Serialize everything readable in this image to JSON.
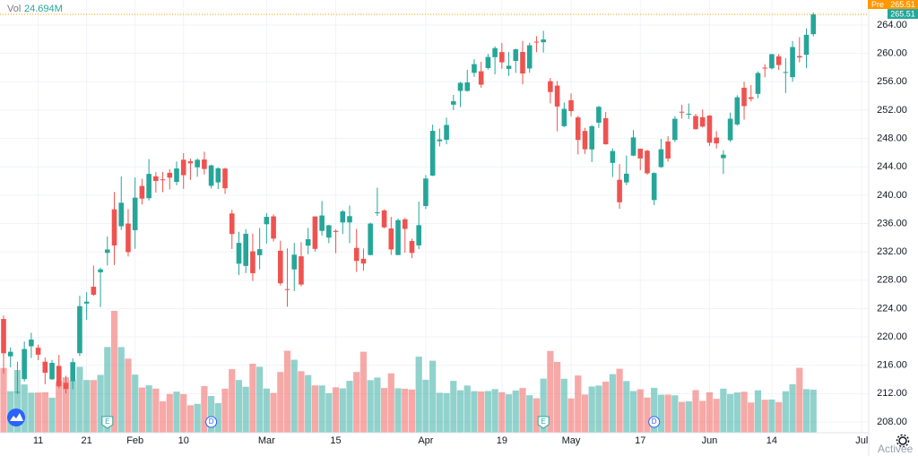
{
  "chart_data": {
    "type": "candlestick",
    "categories": [
      null,
      null,
      null,
      null,
      null,
      "11",
      null,
      null,
      null,
      null,
      null,
      null,
      "21",
      null,
      null,
      null,
      null,
      null,
      null,
      "Feb",
      null,
      null,
      null,
      null,
      null,
      null,
      "10",
      null,
      null,
      null,
      null,
      null,
      null,
      null,
      null,
      null,
      null,
      null,
      "Mar",
      null,
      null,
      null,
      null,
      null,
      null,
      null,
      null,
      null,
      "15",
      null,
      null,
      null,
      null,
      null,
      null,
      null,
      null,
      null,
      null,
      null,
      null,
      "Apr",
      null,
      null,
      null,
      null,
      null,
      null,
      null,
      null,
      null,
      null,
      "19",
      null,
      null,
      null,
      null,
      null,
      null,
      null,
      null,
      null,
      "May",
      null,
      null,
      null,
      null,
      null,
      null,
      null,
      null,
      null,
      "17",
      null,
      null,
      null,
      null,
      null,
      null,
      null,
      null,
      null,
      "Jun",
      null,
      null,
      null,
      null,
      null,
      null,
      null,
      null,
      "14",
      null,
      null,
      null,
      null,
      null,
      null,
      null,
      null,
      null,
      null,
      null,
      null,
      "Jul"
    ],
    "open": [
      222.53,
      217.26,
      212.17,
      214.04,
      218.68,
      218.47,
      216.5,
      214.02,
      215.91,
      213.52,
      213.75,
      217.7,
      224.7,
      227.08,
      229.12,
      231.86,
      238,
      235.61,
      235.99,
      235.06,
      241.3,
      239.57,
      242.66,
      242.23,
      243.15,
      241.87,
      245,
      244.78,
      243.93,
      245.03,
      241.32,
      241.8,
      243.75,
      237.42,
      230.33,
      230.01,
      232.08,
      231.53,
      235.9,
      237.01,
      232.16,
      226.74,
      229.52,
      231.37,
      232.88,
      237,
      234.96,
      234.01,
      234.96,
      236.15,
      236.15,
      232.56,
      231.02,
      231.55,
      237.49,
      237.85,
      235.3,
      231.55,
      236.59,
      233.53,
      232.91,
      238.47,
      242.76,
      247.61,
      247.81,
      252.77,
      254.71,
      254.71,
      257.26,
      257.48,
      257.93,
      259.47,
      260.19,
      257.82,
      258.94,
      260.21,
      257.88,
      261.66,
      261.58,
      256.08,
      255.46,
      249.74,
      253.4,
      250.97,
      249.06,
      246.45,
      250.23,
      250.87,
      244.55,
      242.17,
      241.8,
      245.58,
      246.55,
      246.27,
      239.31,
      243.96,
      247.57,
      247.79,
      251.77,
      251.43,
      251.17,
      251,
      251.23,
      248.13,
      245.22,
      247.76,
      249.98,
      255.16,
      253.81,
      254.29,
      257.99,
      257.9,
      259.58,
      257.32,
      256.65,
      259.63,
      259.82,
      262.72,
      null,
      null,
      null,
      null,
      null,
      null,
      null
    ],
    "high": [
      223,
      218.52,
      216.49,
      219.34,
      220.58,
      218.91,
      217.1,
      216.76,
      217.46,
      214.51,
      216.98,
      225.79,
      226.3,
      230.07,
      229.78,
      234.18,
      240.44,
      242.64,
      238.02,
      242.5,
      242.31,
      245.09,
      243.24,
      243.28,
      243.68,
      244.76,
      245.92,
      245.15,
      245.2,
      246.13,
      244.31,
      243.93,
      243.86,
      237.93,
      234.83,
      235.2,
      234.59,
      235.37,
      237.47,
      237.3,
      233.58,
      232.49,
      233.27,
      233.37,
      235.38,
      237,
      239.17,
      235.82,
      235.19,
      237.9,
      238.55,
      235.23,
      232.47,
      236.13,
      241.05,
      238,
      236.94,
      236.71,
      236.8,
      233.85,
      239.1,
      242.84,
      249.96,
      249.4,
      250.93,
      254.14,
      255.99,
      257.67,
      259.19,
      258.83,
      259.93,
      261,
      261.48,
      260.2,
      260.68,
      261.78,
      261.51,
      262.44,
      263.19,
      256.54,
      256.1,
      253.08,
      254.35,
      251.21,
      249.5,
      249.9,
      252.6,
      251.73,
      246.6,
      244.38,
      245.6,
      249.18,
      246.59,
      246.41,
      243.23,
      247.95,
      248.33,
      251.16,
      252.75,
      252.94,
      251.48,
      252.08,
      251.29,
      249.03,
      246.34,
      251.65,
      254.09,
      256.01,
      255.53,
      257.46,
      258.49,
      259.95,
      259.9,
      259.34,
      261.75,
      262.3,
      263.52,
      265.79,
      null,
      null,
      null,
      null,
      null,
      null,
      null
    ],
    "low": [
      214.81,
      215.7,
      211.94,
      213.71,
      217.03,
      216.73,
      213.32,
      213.93,
      212.74,
      212.03,
      212.63,
      217.29,
      222.42,
      225.8,
      224.22,
      230.08,
      230.14,
      235.09,
      231.35,
      232.43,
      238.69,
      239.26,
      240.37,
      240.42,
      240.81,
      241.38,
      240.89,
      242.15,
      242.6,
      242.92,
      240.94,
      240.86,
      240.18,
      232.4,
      228.73,
      229,
      227.88,
      229.54,
      233.15,
      233.45,
      227.26,
      224.26,
      226.46,
      227.13,
      231.67,
      232.04,
      234.31,
      233.23,
      231.81,
      234.53,
      233.23,
      229.16,
      229.35,
      231.5,
      237.07,
      235.32,
      231.57,
      231.55,
      231.88,
      231.1,
      232.39,
      238.05,
      242.7,
      246.88,
      247.19,
      252,
      252.44,
      254.62,
      256.7,
      255.16,
      257.73,
      257.06,
      257.83,
      256.84,
      257.25,
      255.64,
      257.27,
      260.17,
      260.12,
      252.95,
      249,
      249.6,
      251.12,
      245.76,
      245.82,
      244.68,
      249.49,
      247.12,
      242.57,
      238.07,
      241.42,
      245.49,
      243.52,
      242.9,
      238.6,
      243.86,
      244.74,
      247.51,
      250.82,
      250.75,
      249.25,
      249.56,
      246.96,
      246.59,
      243,
      247.51,
      249.81,
      250.65,
      253.21,
      253.67,
      256.61,
      257.73,
      257.67,
      254.42,
      256.01,
      258.75,
      257.92,
      262.4,
      null,
      null,
      null,
      null,
      null,
      null,
      null
    ],
    "close": [
      217.69,
      217.9,
      212.25,
      218.29,
      219.62,
      217.49,
      214.93,
      216.34,
      213.02,
      212.65,
      216.44,
      224.34,
      224.97,
      225.95,
      229.53,
      232.33,
      232.9,
      238.93,
      231.96,
      239.65,
      239.51,
      243,
      242.01,
      242.2,
      242.47,
      243.77,
      242.82,
      244.49,
      244.99,
      243.7,
      244.2,
      243.79,
      240.97,
      234.51,
      233.27,
      234.55,
      228.99,
      232.38,
      236.94,
      233.87,
      227.56,
      226.73,
      231.6,
      227.39,
      233.78,
      232.42,
      237.13,
      235.75,
      234.81,
      237.71,
      237.04,
      230.72,
      230.35,
      235.99,
      237.58,
      235.46,
      232.34,
      236.48,
      235.24,
      231.85,
      235.77,
      242.35,
      249.07,
      247.86,
      249.9,
      253.25,
      255.85,
      255.91,
      258.49,
      255.59,
      259.5,
      260.74,
      258.74,
      258.26,
      260.58,
      257.17,
      261.15,
      261.55,
      261.97,
      254.56,
      252.51,
      252.18,
      251.86,
      247.79,
      246.47,
      249.73,
      252.46,
      247.18,
      246.23,
      239,
      243.03,
      248.15,
      245.18,
      243.08,
      243.12,
      246.48,
      245.17,
      250.78,
      251.72,
      251.49,
      249.31,
      249.68,
      247.4,
      247.3,
      245.71,
      250.79,
      253.81,
      252.57,
      253.59,
      257.24,
      257.89,
      259.89,
      258.36,
      257.38,
      260.9,
      259.43,
      262.63,
      265.51,
      null,
      null,
      null,
      null,
      null,
      null,
      null
    ],
    "volume": {
      "name": "Vol",
      "value_label": "24.694M",
      "values": [
        37.13,
        23.82,
        35.93,
        27.69,
        22.96,
        23.03,
        23.21,
        20.09,
        29.48,
        31.75,
        30,
        37.78,
        30.22,
        30.17,
        33.15,
        49.17,
        69.87,
        49.11,
        42.5,
        33.31,
        25.92,
        27.16,
        25.3,
        18.05,
        22.21,
        23.57,
        22.12,
        15.75,
        16.56,
        26.73,
        21.05,
        16.93,
        25.26,
        36.45,
        30.23,
        26.34,
        39.54,
        37.82,
        25.32,
        22.81,
        34.83,
        47.03,
        41.87,
        35.27,
        33.08,
        27.15,
        27.1,
        22.65,
        26.04,
        25.43,
        29.75,
        34.83,
        46.43,
        30.13,
        31.64,
        25.62,
        34.06,
        25.48,
        25.23,
        24.79,
        43.62,
        30.34,
        41.29,
        22.9,
        22.72,
        29.75,
        24.33,
        27.06,
        23.84,
        23.68,
        23.9,
        25,
        23.22,
        22.04,
        24.2,
        25.62,
        21.51,
        19.72,
        31.01,
        46.9,
        40.59,
        30.95,
        19.63,
        32.82,
        21.9,
        26.49,
        27.03,
        29.3,
        33.59,
        36.68,
        29.62,
        23.89,
        24.9,
        20.17,
        25.74,
        21.8,
        21.86,
        21.41,
        17.7,
        17.96,
        24.43,
        18.26,
        23.21,
        19.41,
        25.27,
        22.2,
        23.08,
        23.5,
        17.32,
        24.33,
        18.91,
        19.05,
        17.56,
        23.79,
        27.83,
        37.2,
        25,
        24.694,
        null,
        null,
        null,
        null,
        null,
        null,
        null
      ]
    },
    "events": [
      null,
      null,
      null,
      null,
      null,
      null,
      null,
      null,
      null,
      null,
      null,
      null,
      null,
      null,
      null,
      "E",
      null,
      null,
      null,
      null,
      null,
      null,
      null,
      null,
      null,
      null,
      null,
      null,
      null,
      null,
      "D",
      null,
      null,
      null,
      null,
      null,
      null,
      null,
      null,
      null,
      null,
      null,
      null,
      null,
      null,
      null,
      null,
      null,
      null,
      null,
      null,
      null,
      null,
      null,
      null,
      null,
      null,
      null,
      null,
      null,
      null,
      null,
      null,
      null,
      null,
      null,
      null,
      null,
      null,
      null,
      null,
      null,
      null,
      null,
      null,
      null,
      null,
      null,
      "E",
      null,
      null,
      null,
      null,
      null,
      null,
      null,
      null,
      null,
      null,
      null,
      null,
      null,
      null,
      null,
      "D",
      null,
      null,
      null,
      null,
      null,
      null,
      null,
      null,
      null,
      null,
      null,
      null,
      null,
      null,
      null,
      null,
      null,
      null,
      null,
      null,
      null,
      null,
      null,
      null,
      null,
      null,
      null,
      null,
      null,
      null
    ],
    "up_color": "#26a69a",
    "down_color": "#ef5350",
    "premarket": {
      "label": "Pre",
      "value": 265.51,
      "color": "#ff9800"
    },
    "ylim": [
      206.48,
      267.54
    ],
    "yticks": [
      {
        "value": 208,
        "label": "208.00"
      },
      {
        "value": 212,
        "label": "212.00"
      },
      {
        "value": 216,
        "label": "216.00"
      },
      {
        "value": 220,
        "label": "220.00"
      },
      {
        "value": 224,
        "label": "224.00"
      },
      {
        "value": 228,
        "label": "228.00"
      },
      {
        "value": 232,
        "label": "232.00"
      },
      {
        "value": 236,
        "label": "236.00"
      },
      {
        "value": 240,
        "label": "240.00"
      },
      {
        "value": 244,
        "label": "244.00"
      },
      {
        "value": 248,
        "label": "248.00"
      },
      {
        "value": 252,
        "label": "252.00"
      },
      {
        "value": 256,
        "label": "256.00"
      },
      {
        "value": 260,
        "label": "260.00"
      },
      {
        "value": 264,
        "label": "264.00"
      }
    ],
    "grid": true,
    "watermark": "Activee"
  }
}
